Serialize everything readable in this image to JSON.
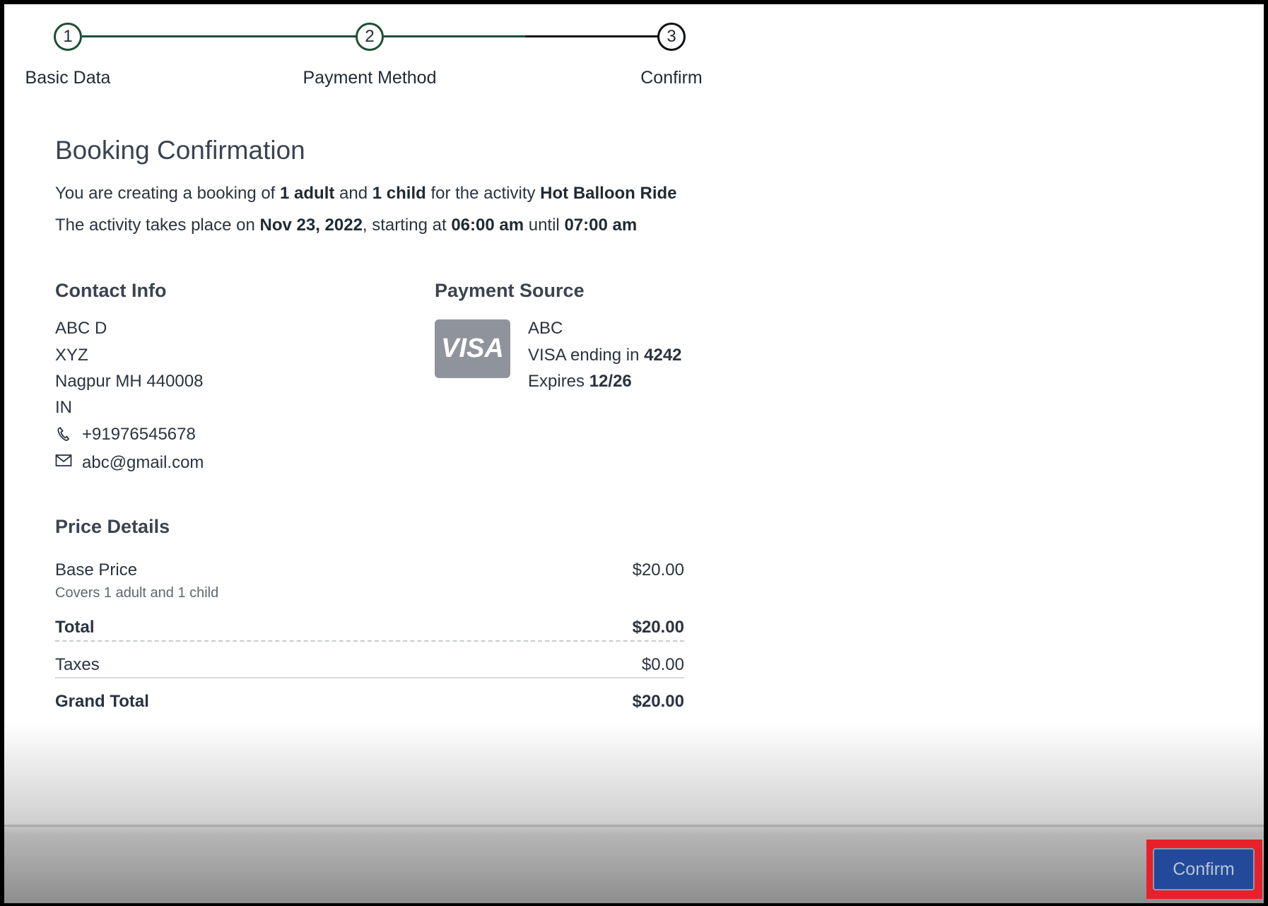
{
  "stepper": {
    "steps": [
      {
        "number": "1",
        "label": "Basic Data",
        "state": "complete"
      },
      {
        "number": "2",
        "label": "Payment Method",
        "state": "complete"
      },
      {
        "number": "3",
        "label": "Confirm",
        "state": "current"
      }
    ],
    "complete_color": "#1f4d36"
  },
  "title": "Booking Confirmation",
  "summary": {
    "line1": {
      "t1": "You are creating a booking of ",
      "adults": "1 adult",
      "t2": " and ",
      "children": "1 child",
      "t3": " for the activity ",
      "activity": "Hot Balloon Ride"
    },
    "line2": {
      "t1": "The activity takes place on ",
      "date": "Nov 23, 2022",
      "t2": ", starting at ",
      "start": "06:00 am",
      "t3": " until ",
      "end": "07:00 am"
    }
  },
  "contact": {
    "heading": "Contact Info",
    "name": "ABC D",
    "line2": "XYZ",
    "city": "Nagpur MH 440008",
    "country": "IN",
    "phone": "+91976545678",
    "email": "abc@gmail.com",
    "phone_icon": "phone-icon",
    "email_icon": "mail-icon"
  },
  "payment": {
    "heading": "Payment Source",
    "card_brand": "VISA",
    "holder": "ABC",
    "ending_label": "VISA ending in ",
    "last4": "4242",
    "expires_label": "Expires ",
    "expiry": "12/26"
  },
  "price": {
    "heading": "Price Details",
    "base_label": "Base Price",
    "base_note": "Covers 1 adult and 1 child",
    "base_value": "$20.00",
    "total_label": "Total",
    "total_value": "$20.00",
    "taxes_label": "Taxes",
    "taxes_value": "$0.00",
    "grand_label": "Grand Total",
    "grand_value": "$20.00"
  },
  "footer": {
    "confirm_label": "Confirm",
    "button_color": "#234a9a",
    "highlight_color": "#e8202a"
  }
}
